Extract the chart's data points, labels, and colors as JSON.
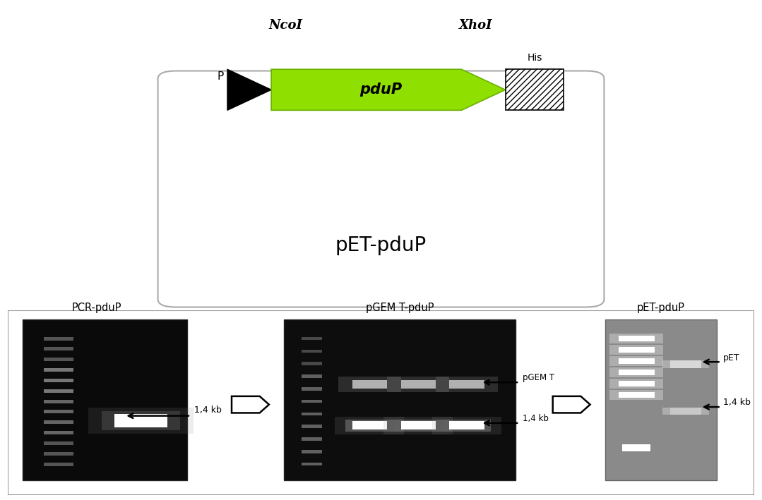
{
  "bg_color": "#ffffff",
  "diagram": {
    "ncoi_label": "NcoI",
    "xhoi_label": "XhoI",
    "pdup_label": "pduP",
    "his_label": "His",
    "plasmid_label": "pET-pduP",
    "arrow_color": "#8fdf00",
    "arrow_edge_color": "#6ab000"
  },
  "text_color": "#000000"
}
